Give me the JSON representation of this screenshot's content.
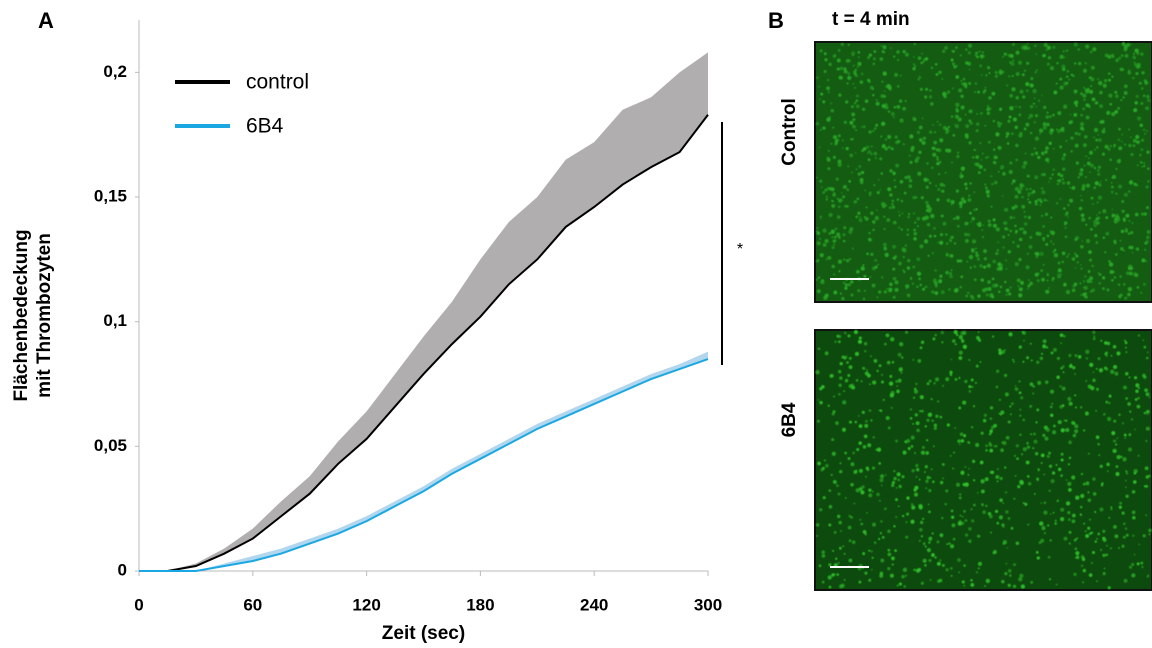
{
  "chart_data": {
    "type": "line",
    "panel_label": "A",
    "ylabel": [
      "Flächenbedeckung",
      "mit Thrombozyten"
    ],
    "xlabel": "Zeit (sec)",
    "x": [
      0,
      15,
      30,
      45,
      60,
      75,
      90,
      105,
      120,
      135,
      150,
      165,
      180,
      195,
      210,
      225,
      240,
      255,
      270,
      285,
      300
    ],
    "series": [
      {
        "name": "control",
        "color": "#000000",
        "band_color": "#b0aeae",
        "values": [
          0,
          0,
          0.002,
          0.007,
          0.013,
          0.022,
          0.031,
          0.043,
          0.053,
          0.066,
          0.079,
          0.091,
          0.102,
          0.115,
          0.125,
          0.138,
          0.146,
          0.155,
          0.162,
          0.168,
          0.183
        ],
        "upper": [
          0,
          0,
          0.003,
          0.009,
          0.017,
          0.028,
          0.038,
          0.052,
          0.064,
          0.079,
          0.094,
          0.108,
          0.125,
          0.14,
          0.15,
          0.165,
          0.172,
          0.185,
          0.19,
          0.2,
          0.208
        ]
      },
      {
        "name": "6B4",
        "color": "#1ba8e2",
        "band_color": "#b2d6ee",
        "values": [
          0,
          0,
          0,
          0.002,
          0.004,
          0.007,
          0.011,
          0.015,
          0.02,
          0.026,
          0.032,
          0.039,
          0.045,
          0.051,
          0.057,
          0.062,
          0.067,
          0.072,
          0.077,
          0.081,
          0.085
        ],
        "upper": [
          0,
          0,
          0,
          0.003,
          0.006,
          0.009,
          0.013,
          0.017,
          0.022,
          0.028,
          0.034,
          0.041,
          0.047,
          0.053,
          0.059,
          0.064,
          0.069,
          0.074,
          0.079,
          0.083,
          0.088
        ]
      }
    ],
    "xlim": [
      0,
      300
    ],
    "xticks": [
      0,
      60,
      120,
      180,
      240,
      300
    ],
    "ylim": [
      0,
      0.221
    ],
    "yticks": [
      0,
      {
        "value": 0.05,
        "label": "0,05"
      },
      {
        "value": 0.1,
        "label": "0,1"
      },
      {
        "value": 0.15,
        "label": "0,15"
      },
      {
        "value": 0.2,
        "label": "0,2"
      }
    ],
    "significance": "*"
  },
  "panel_b": {
    "label": "B",
    "title": "t = 4 min",
    "rows": [
      "Control",
      "6B4"
    ]
  }
}
